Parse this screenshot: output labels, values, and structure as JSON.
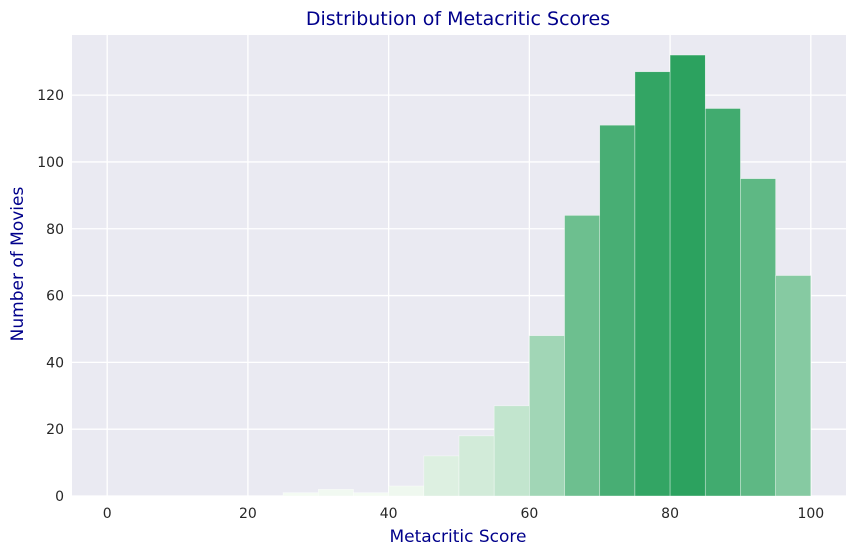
{
  "chart_data": {
    "type": "bar",
    "title": "Distribution of Metacritic Scores",
    "xlabel": "Metacritic Score",
    "ylabel": "Number of Movies",
    "xlim": [
      -5,
      105
    ],
    "ylim": [
      0,
      138
    ],
    "xticks": [
      0,
      20,
      40,
      60,
      80,
      100
    ],
    "yticks": [
      0,
      20,
      40,
      60,
      80,
      100,
      120
    ],
    "grid": true,
    "bin_width": 5,
    "bins": [
      {
        "start": 0,
        "end": 5,
        "count": 0
      },
      {
        "start": 5,
        "end": 10,
        "count": 0
      },
      {
        "start": 10,
        "end": 15,
        "count": 0
      },
      {
        "start": 15,
        "end": 20,
        "count": 0
      },
      {
        "start": 20,
        "end": 25,
        "count": 0
      },
      {
        "start": 25,
        "end": 30,
        "count": 1
      },
      {
        "start": 30,
        "end": 35,
        "count": 2
      },
      {
        "start": 35,
        "end": 40,
        "count": 1
      },
      {
        "start": 40,
        "end": 45,
        "count": 3
      },
      {
        "start": 45,
        "end": 50,
        "count": 12
      },
      {
        "start": 50,
        "end": 55,
        "count": 18
      },
      {
        "start": 55,
        "end": 60,
        "count": 27
      },
      {
        "start": 60,
        "end": 65,
        "count": 48
      },
      {
        "start": 65,
        "end": 70,
        "count": 84
      },
      {
        "start": 70,
        "end": 75,
        "count": 111
      },
      {
        "start": 75,
        "end": 80,
        "count": 127
      },
      {
        "start": 80,
        "end": 85,
        "count": 132
      },
      {
        "start": 85,
        "end": 90,
        "count": 116
      },
      {
        "start": 90,
        "end": 95,
        "count": 95
      },
      {
        "start": 95,
        "end": 100,
        "count": 66
      }
    ],
    "colors": {
      "plot_background": "#eaeaf2",
      "grid": "#ffffff",
      "title_text": "#00008b",
      "tick_text": "#262626",
      "bar_light": "#f7fcf5",
      "bar_dark": "#2ca25f"
    }
  }
}
